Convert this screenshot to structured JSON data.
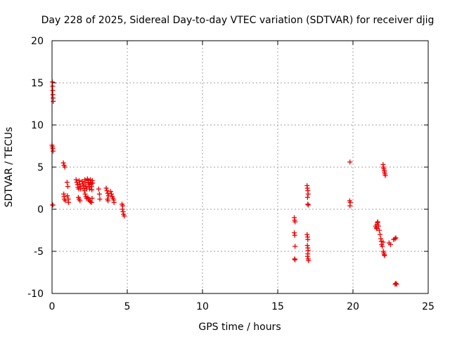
{
  "chart_data": {
    "type": "scatter",
    "title": "Day 228 of 2025, Sidereal Day-to-day VTEC variation (SDTVAR) for receiver djig",
    "xlabel": "GPS time / hours",
    "ylabel": "SDTVAR / TECUs",
    "xlim": [
      0,
      25
    ],
    "ylim": [
      -10,
      20
    ],
    "x_ticks": [
      "0",
      "5",
      "10",
      "15",
      "20",
      "25"
    ],
    "y_ticks": [
      "-10",
      "-5",
      "0",
      "5",
      "10",
      "15",
      "20"
    ],
    "grid": true,
    "marker": "plus",
    "color": "#ee0000",
    "series": [
      {
        "name": "SDTVAR",
        "points": [
          [
            0.02,
            15.1
          ],
          [
            0.04,
            14.6
          ],
          [
            0.05,
            14.1
          ],
          [
            0.06,
            13.6
          ],
          [
            0.07,
            13.2
          ],
          [
            0.08,
            12.8
          ],
          [
            0.0,
            7.6
          ],
          [
            0.03,
            7.4
          ],
          [
            0.05,
            7.2
          ],
          [
            0.07,
            6.9
          ],
          [
            0.03,
            0.5
          ],
          [
            0.06,
            0.5
          ],
          [
            0.75,
            5.5
          ],
          [
            0.8,
            5.2
          ],
          [
            0.85,
            5.0
          ],
          [
            0.78,
            1.8
          ],
          [
            0.8,
            1.5
          ],
          [
            0.82,
            1.2
          ],
          [
            0.88,
            1.0
          ],
          [
            1.0,
            3.2
          ],
          [
            1.05,
            2.7
          ],
          [
            1.02,
            1.6
          ],
          [
            1.08,
            1.2
          ],
          [
            1.1,
            0.8
          ],
          [
            1.6,
            3.5
          ],
          [
            1.65,
            3.2
          ],
          [
            1.7,
            2.9
          ],
          [
            1.72,
            2.6
          ],
          [
            1.78,
            2.4
          ],
          [
            1.8,
            3.4
          ],
          [
            1.85,
            3.0
          ],
          [
            1.88,
            2.7
          ],
          [
            1.9,
            2.4
          ],
          [
            1.75,
            1.4
          ],
          [
            1.8,
            1.2
          ],
          [
            1.86,
            1.0
          ],
          [
            2.0,
            3.3
          ],
          [
            2.05,
            3.0
          ],
          [
            2.1,
            2.8
          ],
          [
            2.12,
            2.5
          ],
          [
            2.15,
            2.2
          ],
          [
            2.18,
            3.5
          ],
          [
            2.2,
            3.2
          ],
          [
            2.25,
            2.7
          ],
          [
            2.3,
            2.4
          ],
          [
            2.2,
            1.8
          ],
          [
            2.25,
            1.5
          ],
          [
            2.3,
            1.3
          ],
          [
            2.35,
            3.6
          ],
          [
            2.4,
            3.4
          ],
          [
            2.42,
            3.1
          ],
          [
            2.45,
            2.9
          ],
          [
            2.48,
            2.6
          ],
          [
            2.5,
            2.4
          ],
          [
            2.55,
            3.5
          ],
          [
            2.58,
            3.2
          ],
          [
            2.6,
            3.0
          ],
          [
            2.62,
            2.7
          ],
          [
            2.65,
            2.3
          ],
          [
            2.68,
            3.4
          ],
          [
            2.7,
            3.1
          ],
          [
            2.38,
            1.4
          ],
          [
            2.42,
            1.2
          ],
          [
            2.48,
            1.0
          ],
          [
            2.55,
            0.9
          ],
          [
            2.62,
            0.8
          ],
          [
            2.66,
            1.3
          ],
          [
            3.1,
            2.4
          ],
          [
            3.15,
            1.8
          ],
          [
            3.18,
            1.2
          ],
          [
            3.6,
            2.5
          ],
          [
            3.65,
            2.2
          ],
          [
            3.7,
            1.9
          ],
          [
            3.75,
            1.6
          ],
          [
            3.68,
            1.2
          ],
          [
            3.72,
            1.0
          ],
          [
            3.9,
            2.1
          ],
          [
            3.95,
            1.8
          ],
          [
            4.0,
            1.5
          ],
          [
            4.05,
            1.3
          ],
          [
            4.1,
            1.1
          ],
          [
            4.12,
            0.8
          ],
          [
            4.65,
            0.6
          ],
          [
            4.7,
            0.4
          ],
          [
            4.68,
            0.0
          ],
          [
            4.72,
            -0.3
          ],
          [
            4.75,
            -0.6
          ],
          [
            4.8,
            -0.8
          ],
          [
            16.1,
            -1.0
          ],
          [
            16.12,
            -1.3
          ],
          [
            16.15,
            -1.5
          ],
          [
            16.1,
            -2.8
          ],
          [
            16.13,
            -3.1
          ],
          [
            16.15,
            -4.4
          ],
          [
            16.12,
            -5.9
          ],
          [
            16.15,
            -6.0
          ],
          [
            16.95,
            2.8
          ],
          [
            16.97,
            2.5
          ],
          [
            17.0,
            2.2
          ],
          [
            17.02,
            1.8
          ],
          [
            16.98,
            1.4
          ],
          [
            17.0,
            0.6
          ],
          [
            17.03,
            0.5
          ],
          [
            16.95,
            -3.0
          ],
          [
            16.98,
            -3.3
          ],
          [
            17.0,
            -3.6
          ],
          [
            16.97,
            -4.3
          ],
          [
            17.0,
            -4.6
          ],
          [
            17.02,
            -4.9
          ],
          [
            17.0,
            -5.3
          ],
          [
            16.98,
            -5.6
          ],
          [
            17.02,
            -5.9
          ],
          [
            17.05,
            -6.1
          ],
          [
            19.8,
            5.6
          ],
          [
            19.78,
            1.0
          ],
          [
            19.82,
            0.8
          ],
          [
            19.8,
            0.4
          ],
          [
            21.5,
            -2.0
          ],
          [
            21.55,
            -2.2
          ],
          [
            21.6,
            -1.8
          ],
          [
            21.62,
            -1.6
          ],
          [
            21.65,
            -1.5
          ],
          [
            21.58,
            -2.3
          ],
          [
            21.7,
            -2.0
          ],
          [
            21.75,
            -2.5
          ],
          [
            21.8,
            -3.0
          ],
          [
            21.85,
            -3.5
          ],
          [
            21.88,
            -3.8
          ],
          [
            21.9,
            -4.2
          ],
          [
            21.95,
            -4.4
          ],
          [
            22.0,
            -3.9
          ],
          [
            22.02,
            -5.0
          ],
          [
            22.05,
            -5.2
          ],
          [
            22.08,
            -5.4
          ],
          [
            22.1,
            -5.5
          ],
          [
            22.0,
            5.3
          ],
          [
            22.02,
            5.0
          ],
          [
            22.05,
            4.8
          ],
          [
            22.08,
            4.6
          ],
          [
            22.1,
            4.4
          ],
          [
            22.12,
            4.2
          ],
          [
            22.15,
            4.0
          ],
          [
            22.4,
            -4.0
          ],
          [
            22.5,
            -4.2
          ],
          [
            22.7,
            -3.6
          ],
          [
            22.8,
            -3.5
          ],
          [
            22.85,
            -3.4
          ],
          [
            22.8,
            -8.9
          ],
          [
            22.85,
            -8.8
          ],
          [
            22.9,
            -8.9
          ]
        ]
      }
    ]
  }
}
